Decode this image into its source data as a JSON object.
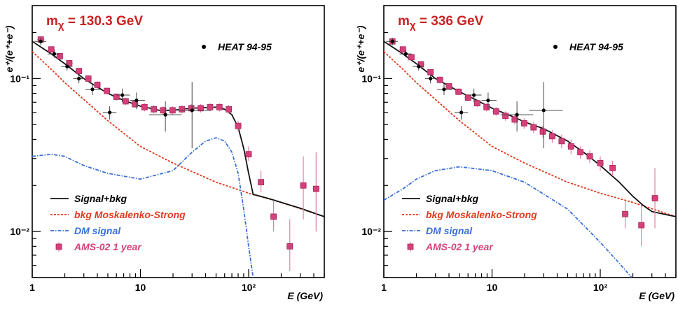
{
  "chart_data": [
    {
      "type": "scatter",
      "title": "",
      "annotation": {
        "prefix": "m",
        "subscript": "χ",
        "suffix": " = 130.3 GeV"
      },
      "xlabel": "E (GeV)",
      "ylabel": "e⁺/(e⁺+e⁻)",
      "xscale": "log",
      "yscale": "log",
      "xlim": [
        1,
        500
      ],
      "ylim": [
        0.005,
        0.3
      ],
      "xticks": [
        {
          "v": 1,
          "label": "1"
        },
        {
          "v": 10,
          "label": "10"
        },
        {
          "v": 100,
          "label": "10²"
        }
      ],
      "yticks": [
        {
          "v": 0.1,
          "label": "10⁻¹"
        },
        {
          "v": 0.01,
          "label": "10⁻²"
        }
      ],
      "legend": {
        "placement": "bottom-left",
        "signal_bkg": "Signal+bkg",
        "bkg": "bkg Moskalenko-Strong",
        "dm": "DM signal",
        "ams": "AMS-02 1 year",
        "heat": "HEAT 94-95"
      },
      "series": {
        "signal_bkg": {
          "x": [
            1,
            1.5,
            2,
            3,
            4,
            5,
            7,
            10,
            15,
            20,
            30,
            50,
            60,
            70,
            80,
            90,
            100,
            110,
            150,
            200,
            300,
            500
          ],
          "y": [
            0.175,
            0.145,
            0.125,
            0.1,
            0.088,
            0.08,
            0.072,
            0.066,
            0.062,
            0.062,
            0.064,
            0.065,
            0.063,
            0.058,
            0.048,
            0.035,
            0.024,
            0.0175,
            0.0165,
            0.0155,
            0.0142,
            0.0125
          ]
        },
        "bkg": {
          "x": [
            1,
            1.5,
            2,
            3,
            5,
            10,
            20,
            50,
            100,
            200,
            500
          ],
          "y": [
            0.15,
            0.115,
            0.094,
            0.073,
            0.053,
            0.036,
            0.028,
            0.021,
            0.0178,
            0.0155,
            0.0125
          ]
        },
        "dm": {
          "x": [
            1,
            1.5,
            2,
            3,
            5,
            10,
            20,
            30,
            40,
            50,
            60,
            70,
            80,
            90,
            100,
            110
          ],
          "y": [
            0.031,
            0.032,
            0.031,
            0.027,
            0.024,
            0.022,
            0.025,
            0.033,
            0.039,
            0.041,
            0.039,
            0.033,
            0.024,
            0.014,
            0.008,
            0.005
          ]
        },
        "ams": [
          {
            "x": 1.2,
            "y": 0.18,
            "lo": 0.172,
            "hi": 0.188
          },
          {
            "x": 1.5,
            "y": 0.155,
            "lo": 0.148,
            "hi": 0.162
          },
          {
            "x": 1.8,
            "y": 0.14,
            "lo": 0.134,
            "hi": 0.146
          },
          {
            "x": 2.2,
            "y": 0.126,
            "lo": 0.12,
            "hi": 0.132
          },
          {
            "x": 2.7,
            "y": 0.112,
            "lo": 0.107,
            "hi": 0.117
          },
          {
            "x": 3.3,
            "y": 0.1,
            "lo": 0.095,
            "hi": 0.105
          },
          {
            "x": 4.0,
            "y": 0.091,
            "lo": 0.086,
            "hi": 0.096
          },
          {
            "x": 4.9,
            "y": 0.083,
            "lo": 0.079,
            "hi": 0.087
          },
          {
            "x": 6.0,
            "y": 0.076,
            "lo": 0.072,
            "hi": 0.08
          },
          {
            "x": 7.3,
            "y": 0.071,
            "lo": 0.067,
            "hi": 0.075
          },
          {
            "x": 8.9,
            "y": 0.068,
            "lo": 0.064,
            "hi": 0.072
          },
          {
            "x": 10.9,
            "y": 0.065,
            "lo": 0.061,
            "hi": 0.069
          },
          {
            "x": 13.3,
            "y": 0.063,
            "lo": 0.059,
            "hi": 0.067
          },
          {
            "x": 16.2,
            "y": 0.062,
            "lo": 0.058,
            "hi": 0.066
          },
          {
            "x": 19.8,
            "y": 0.062,
            "lo": 0.058,
            "hi": 0.066
          },
          {
            "x": 24.2,
            "y": 0.063,
            "lo": 0.059,
            "hi": 0.067
          },
          {
            "x": 29.5,
            "y": 0.064,
            "lo": 0.06,
            "hi": 0.068
          },
          {
            "x": 36.0,
            "y": 0.064,
            "lo": 0.06,
            "hi": 0.068
          },
          {
            "x": 44.0,
            "y": 0.065,
            "lo": 0.061,
            "hi": 0.069
          },
          {
            "x": 53.7,
            "y": 0.065,
            "lo": 0.061,
            "hi": 0.069
          },
          {
            "x": 65.5,
            "y": 0.063,
            "lo": 0.059,
            "hi": 0.067
          },
          {
            "x": 80.0,
            "y": 0.049,
            "lo": 0.045,
            "hi": 0.053
          },
          {
            "x": 100.0,
            "y": 0.032,
            "lo": 0.029,
            "hi": 0.036
          },
          {
            "x": 130.0,
            "y": 0.021,
            "lo": 0.018,
            "hi": 0.025
          },
          {
            "x": 170.0,
            "y": 0.0125,
            "lo": 0.01,
            "hi": 0.016
          },
          {
            "x": 240.0,
            "y": 0.008,
            "lo": 0.0055,
            "hi": 0.012
          },
          {
            "x": 320.0,
            "y": 0.02,
            "lo": 0.012,
            "hi": 0.031
          },
          {
            "x": 420.0,
            "y": 0.019,
            "lo": 0.01,
            "hi": 0.033
          }
        ],
        "heat": [
          {
            "x": 1.2,
            "y": 0.175,
            "lo": 0.165,
            "hi": 0.185,
            "xlo": 1.05,
            "xhi": 1.35
          },
          {
            "x": 1.6,
            "y": 0.145,
            "lo": 0.137,
            "hi": 0.153,
            "xlo": 1.4,
            "xhi": 1.8
          },
          {
            "x": 2.1,
            "y": 0.12,
            "lo": 0.113,
            "hi": 0.127,
            "xlo": 1.85,
            "xhi": 2.35
          },
          {
            "x": 2.7,
            "y": 0.1,
            "lo": 0.093,
            "hi": 0.107,
            "xlo": 2.4,
            "xhi": 3.0
          },
          {
            "x": 3.6,
            "y": 0.085,
            "lo": 0.078,
            "hi": 0.092,
            "xlo": 3.1,
            "xhi": 4.3
          },
          {
            "x": 5.2,
            "y": 0.06,
            "lo": 0.054,
            "hi": 0.066,
            "xlo": 4.5,
            "xhi": 6.0
          },
          {
            "x": 6.8,
            "y": 0.078,
            "lo": 0.07,
            "hi": 0.086,
            "xlo": 6.0,
            "xhi": 8.0
          },
          {
            "x": 9.2,
            "y": 0.072,
            "lo": 0.063,
            "hi": 0.081,
            "xlo": 8.0,
            "xhi": 11.0
          },
          {
            "x": 17.0,
            "y": 0.058,
            "lo": 0.045,
            "hi": 0.071,
            "xlo": 12.0,
            "xhi": 24.0
          },
          {
            "x": 30.0,
            "y": 0.062,
            "lo": 0.035,
            "hi": 0.095,
            "xlo": 22.0,
            "xhi": 45.0
          }
        ]
      }
    },
    {
      "type": "scatter",
      "title": "",
      "annotation": {
        "prefix": "m",
        "subscript": "χ",
        "suffix": " = 336 GeV"
      },
      "xlabel": "E (GeV)",
      "ylabel": "e⁺/(e⁺+e⁻)",
      "xscale": "log",
      "yscale": "log",
      "xlim": [
        1,
        500
      ],
      "ylim": [
        0.005,
        0.3
      ],
      "xticks": [
        {
          "v": 1,
          "label": "1"
        },
        {
          "v": 10,
          "label": "10"
        },
        {
          "v": 100,
          "label": "10²"
        }
      ],
      "yticks": [
        {
          "v": 0.1,
          "label": "10⁻¹"
        },
        {
          "v": 0.01,
          "label": "10⁻²"
        }
      ],
      "legend": {
        "placement": "bottom-left",
        "signal_bkg": "Signal+bkg",
        "bkg": "bkg Moskalenko-Strong",
        "dm": "DM signal",
        "ams": "AMS-02 1 year",
        "heat": "HEAT 94-95"
      },
      "series": {
        "signal_bkg": {
          "x": [
            1,
            1.5,
            2,
            3,
            5,
            7,
            10,
            15,
            20,
            30,
            50,
            70,
            100,
            150,
            200,
            250,
            300,
            500
          ],
          "y": [
            0.175,
            0.145,
            0.125,
            0.1,
            0.082,
            0.073,
            0.064,
            0.057,
            0.052,
            0.047,
            0.039,
            0.033,
            0.027,
            0.021,
            0.017,
            0.0148,
            0.0135,
            0.0125
          ]
        },
        "bkg": {
          "x": [
            1,
            1.5,
            2,
            3,
            5,
            10,
            20,
            50,
            100,
            200,
            500
          ],
          "y": [
            0.15,
            0.115,
            0.094,
            0.073,
            0.053,
            0.036,
            0.028,
            0.021,
            0.0178,
            0.0155,
            0.0125
          ]
        },
        "dm": {
          "x": [
            1,
            1.5,
            2,
            3,
            5,
            10,
            20,
            50,
            100,
            150,
            200,
            250
          ],
          "y": [
            0.016,
            0.019,
            0.022,
            0.025,
            0.0265,
            0.025,
            0.021,
            0.014,
            0.0085,
            0.0062,
            0.0049,
            0.0043
          ]
        },
        "ams": [
          {
            "x": 1.2,
            "y": 0.175,
            "lo": 0.167,
            "hi": 0.183
          },
          {
            "x": 1.5,
            "y": 0.155,
            "lo": 0.148,
            "hi": 0.162
          },
          {
            "x": 1.8,
            "y": 0.138,
            "lo": 0.132,
            "hi": 0.144
          },
          {
            "x": 2.2,
            "y": 0.124,
            "lo": 0.118,
            "hi": 0.13
          },
          {
            "x": 2.7,
            "y": 0.11,
            "lo": 0.105,
            "hi": 0.115
          },
          {
            "x": 3.3,
            "y": 0.098,
            "lo": 0.093,
            "hi": 0.103
          },
          {
            "x": 4.0,
            "y": 0.089,
            "lo": 0.085,
            "hi": 0.093
          },
          {
            "x": 4.9,
            "y": 0.082,
            "lo": 0.078,
            "hi": 0.086
          },
          {
            "x": 6.0,
            "y": 0.075,
            "lo": 0.071,
            "hi": 0.079
          },
          {
            "x": 7.3,
            "y": 0.069,
            "lo": 0.065,
            "hi": 0.073
          },
          {
            "x": 8.9,
            "y": 0.065,
            "lo": 0.061,
            "hi": 0.069
          },
          {
            "x": 10.9,
            "y": 0.061,
            "lo": 0.057,
            "hi": 0.065
          },
          {
            "x": 13.3,
            "y": 0.057,
            "lo": 0.053,
            "hi": 0.061
          },
          {
            "x": 16.2,
            "y": 0.054,
            "lo": 0.05,
            "hi": 0.058
          },
          {
            "x": 19.8,
            "y": 0.051,
            "lo": 0.047,
            "hi": 0.055
          },
          {
            "x": 24.2,
            "y": 0.048,
            "lo": 0.044,
            "hi": 0.052
          },
          {
            "x": 29.5,
            "y": 0.045,
            "lo": 0.041,
            "hi": 0.049
          },
          {
            "x": 36.0,
            "y": 0.042,
            "lo": 0.038,
            "hi": 0.046
          },
          {
            "x": 44.0,
            "y": 0.039,
            "lo": 0.035,
            "hi": 0.043
          },
          {
            "x": 53.7,
            "y": 0.036,
            "lo": 0.032,
            "hi": 0.04
          },
          {
            "x": 65.5,
            "y": 0.033,
            "lo": 0.03,
            "hi": 0.036
          },
          {
            "x": 80.0,
            "y": 0.031,
            "lo": 0.028,
            "hi": 0.034
          },
          {
            "x": 100.0,
            "y": 0.028,
            "lo": 0.025,
            "hi": 0.031
          },
          {
            "x": 130.0,
            "y": 0.026,
            "lo": 0.023,
            "hi": 0.029
          },
          {
            "x": 170.0,
            "y": 0.013,
            "lo": 0.0105,
            "hi": 0.016
          },
          {
            "x": 240.0,
            "y": 0.011,
            "lo": 0.008,
            "hi": 0.015
          },
          {
            "x": 320.0,
            "y": 0.0165,
            "lo": 0.0105,
            "hi": 0.026
          }
        ],
        "heat": [
          {
            "x": 1.2,
            "y": 0.175,
            "lo": 0.165,
            "hi": 0.185,
            "xlo": 1.05,
            "xhi": 1.35
          },
          {
            "x": 1.6,
            "y": 0.145,
            "lo": 0.137,
            "hi": 0.153,
            "xlo": 1.4,
            "xhi": 1.8
          },
          {
            "x": 2.1,
            "y": 0.12,
            "lo": 0.113,
            "hi": 0.127,
            "xlo": 1.85,
            "xhi": 2.35
          },
          {
            "x": 2.7,
            "y": 0.1,
            "lo": 0.093,
            "hi": 0.107,
            "xlo": 2.4,
            "xhi": 3.0
          },
          {
            "x": 3.6,
            "y": 0.085,
            "lo": 0.078,
            "hi": 0.092,
            "xlo": 3.1,
            "xhi": 4.3
          },
          {
            "x": 5.2,
            "y": 0.06,
            "lo": 0.054,
            "hi": 0.066,
            "xlo": 4.5,
            "xhi": 6.0
          },
          {
            "x": 6.8,
            "y": 0.078,
            "lo": 0.07,
            "hi": 0.086,
            "xlo": 6.0,
            "xhi": 8.0
          },
          {
            "x": 9.2,
            "y": 0.072,
            "lo": 0.063,
            "hi": 0.081,
            "xlo": 8.0,
            "xhi": 11.0
          },
          {
            "x": 17.0,
            "y": 0.058,
            "lo": 0.045,
            "hi": 0.071,
            "xlo": 12.0,
            "xhi": 24.0
          },
          {
            "x": 30.0,
            "y": 0.062,
            "lo": 0.035,
            "hi": 0.095,
            "xlo": 22.0,
            "xhi": 45.0
          }
        ]
      }
    }
  ],
  "colors": {
    "signal_bkg": "#111111",
    "bkg": "#e03c1f",
    "dm": "#3a6fd8",
    "ams_fill": "#d6407a",
    "ams_err": "#e67fa5",
    "mass_label": "#cc2222"
  }
}
